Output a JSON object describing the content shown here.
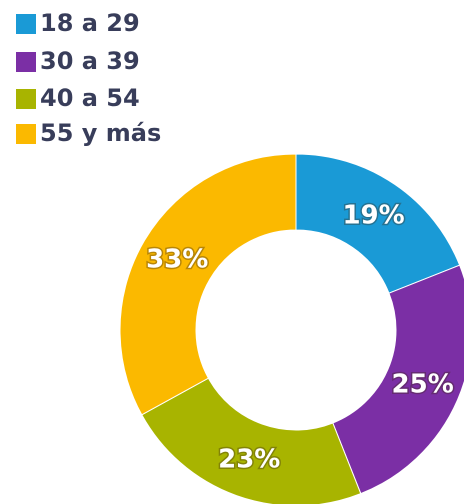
{
  "chart_data": {
    "type": "pie",
    "categories": [
      "18 a 29",
      "30 a 39",
      "40 a 54",
      "55 y más"
    ],
    "values": [
      19,
      25,
      23,
      33
    ],
    "value_labels": [
      "19%",
      "25%",
      "23%",
      "33%"
    ],
    "colors": [
      "#1a9ad6",
      "#7b2fa5",
      "#a8b400",
      "#fbb900"
    ],
    "donut": true,
    "legend": "top-left"
  }
}
